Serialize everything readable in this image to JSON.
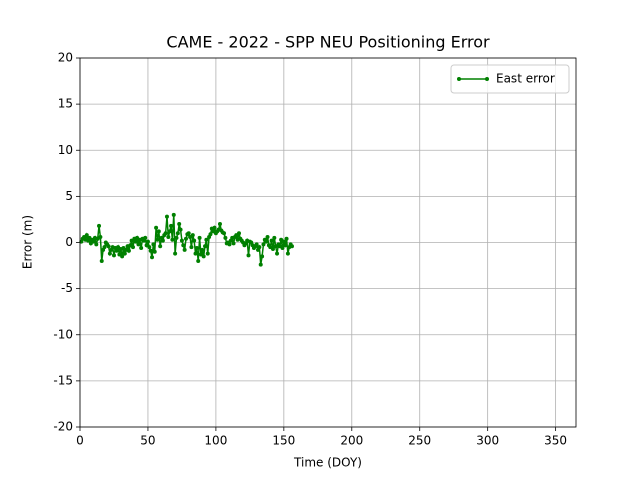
{
  "chart_data": {
    "type": "line",
    "title": "CAME - 2022 - SPP NEU Positioning Error",
    "x_label": "Time (DOY)",
    "y_label": "Error (m)",
    "xlim": [
      0,
      365
    ],
    "ylim": [
      -20,
      20
    ],
    "xticks": [
      0,
      50,
      100,
      150,
      200,
      250,
      300,
      350
    ],
    "yticks": [
      -20,
      -15,
      -10,
      -5,
      0,
      5,
      10,
      15,
      20
    ],
    "grid": true,
    "legend": "upper right",
    "series": [
      {
        "name": "East error",
        "color": "#008000",
        "x": [
          1,
          2,
          3,
          4,
          5,
          6,
          7,
          8,
          9,
          10,
          11,
          12,
          13,
          14,
          15,
          16,
          17,
          18,
          19,
          20,
          21,
          22,
          23,
          24,
          25,
          26,
          27,
          28,
          29,
          30,
          31,
          32,
          33,
          34,
          35,
          36,
          37,
          38,
          39,
          40,
          41,
          42,
          43,
          44,
          45,
          46,
          47,
          48,
          49,
          50,
          51,
          52,
          53,
          54,
          55,
          56,
          57,
          58,
          59,
          60,
          61,
          62,
          63,
          64,
          65,
          66,
          67,
          68,
          69,
          70,
          71,
          72,
          73,
          74,
          75,
          76,
          77,
          78,
          79,
          80,
          81,
          82,
          83,
          84,
          85,
          86,
          87,
          88,
          89,
          90,
          91,
          92,
          93,
          94,
          95,
          96,
          97,
          98,
          99,
          100,
          101,
          102,
          103,
          104,
          105,
          106,
          107,
          108,
          109,
          110,
          111,
          112,
          113,
          114,
          115,
          116,
          117,
          118,
          119,
          120,
          121,
          122,
          123,
          124,
          125,
          126,
          127,
          128,
          129,
          130,
          131,
          132,
          133,
          134,
          135,
          136,
          137,
          138,
          139,
          140,
          141,
          142,
          143,
          144,
          145,
          146,
          147,
          148,
          149,
          150,
          151,
          152,
          153,
          154,
          155,
          156
        ],
        "values": [
          0.1,
          0.4,
          0.6,
          0.3,
          0.8,
          0.2,
          0.5,
          -0.1,
          0.3,
          0.1,
          0.5,
          -0.2,
          0.4,
          1.8,
          0.6,
          -2.0,
          -0.8,
          -0.5,
          0.0,
          -0.2,
          -0.4,
          -1.2,
          -0.8,
          -0.5,
          -1.4,
          -0.6,
          -0.9,
          -0.5,
          -1.3,
          -0.7,
          -1.5,
          -0.6,
          -1.2,
          -0.8,
          -0.4,
          -0.9,
          -0.3,
          0.2,
          -0.5,
          0.4,
          0.1,
          0.5,
          -0.2,
          0.3,
          -0.6,
          0.4,
          0.2,
          0.5,
          -0.3,
          0.1,
          -0.5,
          -0.9,
          -1.6,
          -0.2,
          -1.0,
          1.6,
          0.3,
          1.2,
          -0.4,
          0.5,
          0.2,
          0.8,
          1.0,
          2.8,
          0.6,
          1.2,
          1.8,
          0.3,
          3.0,
          -1.2,
          0.5,
          1.0,
          2.0,
          1.4,
          0.2,
          -0.3,
          -0.8,
          0.4,
          0.9,
          1.0,
          0.6,
          -0.5,
          0.8,
          0.2,
          -1.2,
          -0.6,
          -2.0,
          0.5,
          -1.3,
          -0.8,
          -1.5,
          -0.4,
          0.3,
          -1.2,
          0.6,
          0.9,
          1.5,
          1.2,
          1.6,
          1.0,
          1.2,
          1.4,
          2.0,
          1.3,
          1.1,
          1.0,
          0.5,
          -0.1,
          0.0,
          -0.2,
          0.2,
          0.5,
          -0.1,
          0.6,
          0.8,
          0.3,
          1.0,
          0.4,
          0.2,
          0.0,
          -0.3,
          -0.1,
          0.2,
          -1.4,
          0.1,
          0.0,
          -0.3,
          -0.6,
          -0.4,
          -0.2,
          -0.8,
          -0.5,
          -2.4,
          -1.5,
          -0.2,
          0.3,
          0.1,
          0.6,
          -0.3,
          -0.5,
          0.2,
          -0.7,
          0.5,
          -0.4,
          -1.2,
          -0.2,
          -0.4,
          0.3,
          -0.6,
          0.1,
          -0.3,
          0.4,
          -1.2,
          -0.5,
          -0.2,
          -0.4
        ]
      }
    ]
  }
}
